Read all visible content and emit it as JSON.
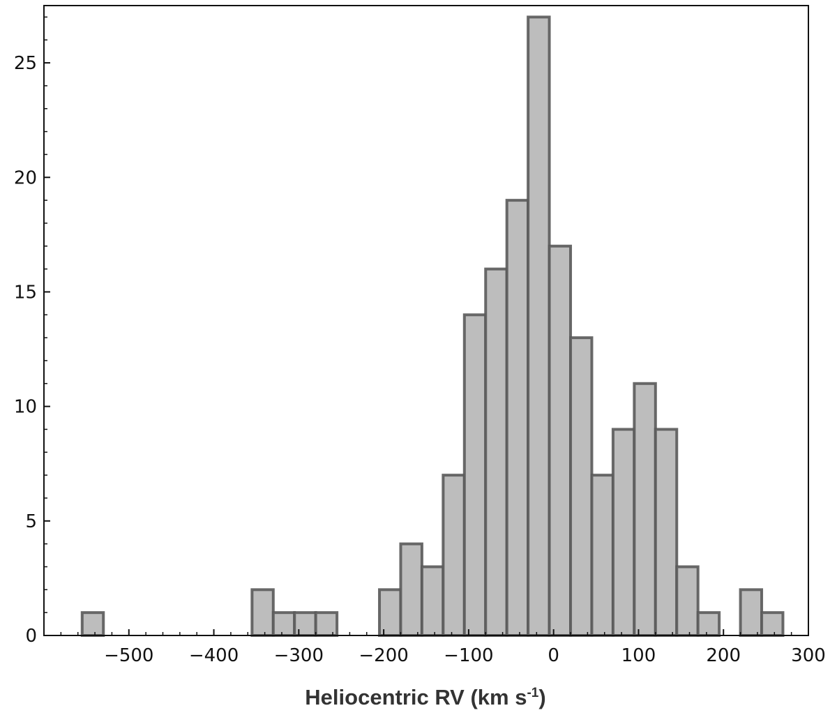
{
  "chart_data": {
    "type": "bar",
    "title": "",
    "xlabel": "Heliocentric RV  (km s",
    "xlabel_sup": "-1",
    "xlabel_close": ")",
    "ylabel": "",
    "xlim": [
      -600,
      300
    ],
    "ylim": [
      0,
      27.5
    ],
    "x_ticks": [
      -500,
      -400,
      -300,
      -200,
      -100,
      0,
      100,
      200,
      300
    ],
    "x_tick_labels": [
      "−500",
      "−400",
      "−300",
      "−200",
      "−100",
      "0",
      "100",
      "200",
      "300"
    ],
    "y_ticks": [
      0,
      5,
      10,
      15,
      20,
      25
    ],
    "y_tick_labels": [
      "0",
      "5",
      "10",
      "15",
      "20",
      "25"
    ],
    "grid": false,
    "legend": "none",
    "bar_fill": "#bdbdbd",
    "bar_edge": "#5a5a5a",
    "bins": [
      {
        "x0": -555,
        "x1": -530,
        "count": 1
      },
      {
        "x0": -355,
        "x1": -330,
        "count": 2
      },
      {
        "x0": -330,
        "x1": -305,
        "count": 1
      },
      {
        "x0": -305,
        "x1": -280,
        "count": 1
      },
      {
        "x0": -280,
        "x1": -255,
        "count": 1
      },
      {
        "x0": -205,
        "x1": -180,
        "count": 2
      },
      {
        "x0": -180,
        "x1": -155,
        "count": 4
      },
      {
        "x0": -155,
        "x1": -130,
        "count": 3
      },
      {
        "x0": -130,
        "x1": -105,
        "count": 7
      },
      {
        "x0": -105,
        "x1": -80,
        "count": 14
      },
      {
        "x0": -80,
        "x1": -55,
        "count": 16
      },
      {
        "x0": -55,
        "x1": -30,
        "count": 19
      },
      {
        "x0": -30,
        "x1": -5,
        "count": 27
      },
      {
        "x0": -5,
        "x1": 20,
        "count": 17
      },
      {
        "x0": 20,
        "x1": 45,
        "count": 13
      },
      {
        "x0": 45,
        "x1": 70,
        "count": 7
      },
      {
        "x0": 70,
        "x1": 95,
        "count": 9
      },
      {
        "x0": 95,
        "x1": 120,
        "count": 11
      },
      {
        "x0": 120,
        "x1": 145,
        "count": 9
      },
      {
        "x0": 145,
        "x1": 170,
        "count": 3
      },
      {
        "x0": 170,
        "x1": 195,
        "count": 1
      },
      {
        "x0": 220,
        "x1": 245,
        "count": 2
      },
      {
        "x0": 245,
        "x1": 270,
        "count": 1
      }
    ]
  }
}
